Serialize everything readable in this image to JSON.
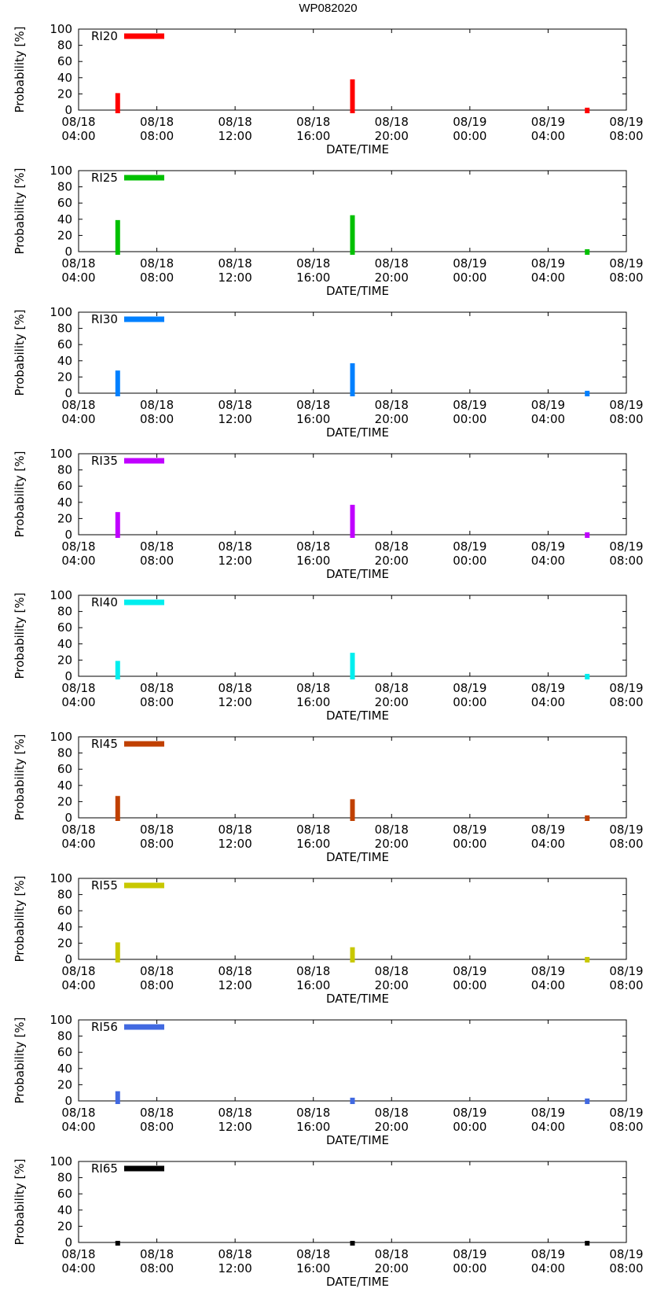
{
  "figure_title": "WP082020",
  "chart_data": [
    {
      "type": "bar",
      "title": "RI20",
      "color": "#ff0000",
      "xlabel": "DATE/TIME",
      "ylabel": "Probability [%]",
      "ylim": [
        0,
        100
      ],
      "yticks": [
        0,
        20,
        40,
        60,
        80,
        100
      ],
      "xticks": [
        [
          "08/18",
          "04:00"
        ],
        [
          "08/18",
          "08:00"
        ],
        [
          "08/18",
          "12:00"
        ],
        [
          "08/18",
          "16:00"
        ],
        [
          "08/18",
          "20:00"
        ],
        [
          "08/19",
          "00:00"
        ],
        [
          "08/19",
          "04:00"
        ],
        [
          "08/19",
          "08:00"
        ]
      ],
      "x_range_hours": [
        4,
        32
      ],
      "x_hours": [
        6,
        18,
        30
      ],
      "values": [
        20,
        37,
        2
      ]
    },
    {
      "type": "bar",
      "title": "RI25",
      "color": "#00c000",
      "xlabel": "DATE/TIME",
      "ylabel": "Probability [%]",
      "ylim": [
        0,
        100
      ],
      "yticks": [
        0,
        20,
        40,
        60,
        80,
        100
      ],
      "xticks": [
        [
          "08/18",
          "04:00"
        ],
        [
          "08/18",
          "08:00"
        ],
        [
          "08/18",
          "12:00"
        ],
        [
          "08/18",
          "16:00"
        ],
        [
          "08/18",
          "20:00"
        ],
        [
          "08/19",
          "00:00"
        ],
        [
          "08/19",
          "04:00"
        ],
        [
          "08/19",
          "08:00"
        ]
      ],
      "x_range_hours": [
        4,
        32
      ],
      "x_hours": [
        6,
        18,
        30
      ],
      "values": [
        38,
        44,
        2
      ]
    },
    {
      "type": "bar",
      "title": "RI30",
      "color": "#0080ff",
      "xlabel": "DATE/TIME",
      "ylabel": "Probability [%]",
      "ylim": [
        0,
        100
      ],
      "yticks": [
        0,
        20,
        40,
        60,
        80,
        100
      ],
      "xticks": [
        [
          "08/18",
          "04:00"
        ],
        [
          "08/18",
          "08:00"
        ],
        [
          "08/18",
          "12:00"
        ],
        [
          "08/18",
          "16:00"
        ],
        [
          "08/18",
          "20:00"
        ],
        [
          "08/19",
          "00:00"
        ],
        [
          "08/19",
          "04:00"
        ],
        [
          "08/19",
          "08:00"
        ]
      ],
      "x_range_hours": [
        4,
        32
      ],
      "x_hours": [
        6,
        18,
        30
      ],
      "values": [
        27,
        36,
        2
      ]
    },
    {
      "type": "bar",
      "title": "RI35",
      "color": "#c000ff",
      "xlabel": "DATE/TIME",
      "ylabel": "Probability [%]",
      "ylim": [
        0,
        100
      ],
      "yticks": [
        0,
        20,
        40,
        60,
        80,
        100
      ],
      "xticks": [
        [
          "08/18",
          "04:00"
        ],
        [
          "08/18",
          "08:00"
        ],
        [
          "08/18",
          "12:00"
        ],
        [
          "08/18",
          "16:00"
        ],
        [
          "08/18",
          "20:00"
        ],
        [
          "08/19",
          "00:00"
        ],
        [
          "08/19",
          "04:00"
        ],
        [
          "08/19",
          "08:00"
        ]
      ],
      "x_range_hours": [
        4,
        32
      ],
      "x_hours": [
        6,
        18,
        30
      ],
      "values": [
        27,
        36,
        2
      ]
    },
    {
      "type": "bar",
      "title": "RI40",
      "color": "#00eeee",
      "xlabel": "DATE/TIME",
      "ylabel": "Probability [%]",
      "ylim": [
        0,
        100
      ],
      "yticks": [
        0,
        20,
        40,
        60,
        80,
        100
      ],
      "xticks": [
        [
          "08/18",
          "04:00"
        ],
        [
          "08/18",
          "08:00"
        ],
        [
          "08/18",
          "12:00"
        ],
        [
          "08/18",
          "16:00"
        ],
        [
          "08/18",
          "20:00"
        ],
        [
          "08/19",
          "00:00"
        ],
        [
          "08/19",
          "04:00"
        ],
        [
          "08/19",
          "08:00"
        ]
      ],
      "x_range_hours": [
        4,
        32
      ],
      "x_hours": [
        6,
        18,
        30
      ],
      "values": [
        18,
        28,
        2
      ]
    },
    {
      "type": "bar",
      "title": "RI45",
      "color": "#c04000",
      "xlabel": "DATE/TIME",
      "ylabel": "Probability [%]",
      "ylim": [
        0,
        100
      ],
      "yticks": [
        0,
        20,
        40,
        60,
        80,
        100
      ],
      "xticks": [
        [
          "08/18",
          "04:00"
        ],
        [
          "08/18",
          "08:00"
        ],
        [
          "08/18",
          "12:00"
        ],
        [
          "08/18",
          "16:00"
        ],
        [
          "08/18",
          "20:00"
        ],
        [
          "08/19",
          "00:00"
        ],
        [
          "08/19",
          "04:00"
        ],
        [
          "08/19",
          "08:00"
        ]
      ],
      "x_range_hours": [
        4,
        32
      ],
      "x_hours": [
        6,
        18,
        30
      ],
      "values": [
        26,
        22,
        2
      ]
    },
    {
      "type": "bar",
      "title": "RI55",
      "color": "#c8c800",
      "xlabel": "DATE/TIME",
      "ylabel": "Probability [%]",
      "ylim": [
        0,
        100
      ],
      "yticks": [
        0,
        20,
        40,
        60,
        80,
        100
      ],
      "xticks": [
        [
          "08/18",
          "04:00"
        ],
        [
          "08/18",
          "08:00"
        ],
        [
          "08/18",
          "12:00"
        ],
        [
          "08/18",
          "16:00"
        ],
        [
          "08/18",
          "20:00"
        ],
        [
          "08/19",
          "00:00"
        ],
        [
          "08/19",
          "04:00"
        ],
        [
          "08/19",
          "08:00"
        ]
      ],
      "x_range_hours": [
        4,
        32
      ],
      "x_hours": [
        6,
        18,
        30
      ],
      "values": [
        20,
        14,
        2
      ]
    },
    {
      "type": "bar",
      "title": "RI56",
      "color": "#4169e1",
      "xlabel": "DATE/TIME",
      "ylabel": "Probability [%]",
      "ylim": [
        0,
        100
      ],
      "yticks": [
        0,
        20,
        40,
        60,
        80,
        100
      ],
      "xticks": [
        [
          "08/18",
          "04:00"
        ],
        [
          "08/18",
          "08:00"
        ],
        [
          "08/18",
          "12:00"
        ],
        [
          "08/18",
          "16:00"
        ],
        [
          "08/18",
          "20:00"
        ],
        [
          "08/19",
          "00:00"
        ],
        [
          "08/19",
          "04:00"
        ],
        [
          "08/19",
          "08:00"
        ]
      ],
      "x_range_hours": [
        4,
        32
      ],
      "x_hours": [
        6,
        18,
        30
      ],
      "values": [
        11,
        3,
        2
      ]
    },
    {
      "type": "bar",
      "title": "RI65",
      "color": "#000000",
      "xlabel": "DATE/TIME",
      "ylabel": "Probability [%]",
      "ylim": [
        0,
        100
      ],
      "yticks": [
        0,
        20,
        40,
        60,
        80,
        100
      ],
      "xticks": [
        [
          "08/18",
          "04:00"
        ],
        [
          "08/18",
          "08:00"
        ],
        [
          "08/18",
          "12:00"
        ],
        [
          "08/18",
          "16:00"
        ],
        [
          "08/18",
          "20:00"
        ],
        [
          "08/19",
          "00:00"
        ],
        [
          "08/19",
          "04:00"
        ],
        [
          "08/19",
          "08:00"
        ]
      ],
      "x_range_hours": [
        4,
        32
      ],
      "x_hours": [
        6,
        18,
        30
      ],
      "values": [
        1,
        1,
        1
      ]
    }
  ]
}
